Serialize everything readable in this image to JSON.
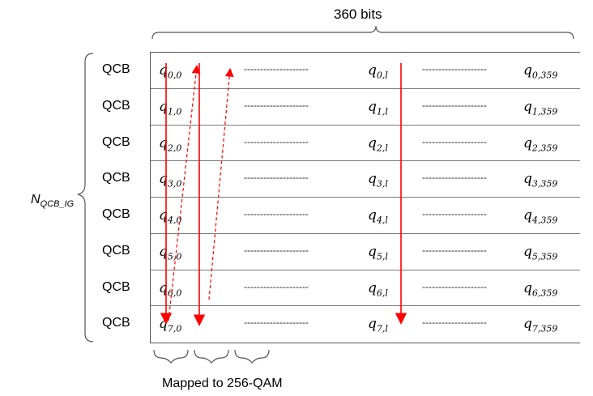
{
  "header": {
    "bits_label": "360 bits"
  },
  "side": {
    "group_label_main": "N",
    "group_label_sub": "QCB_IG"
  },
  "row_label": "QCB",
  "rows": [
    {
      "c0": "0,0",
      "cl": "0,l",
      "cn": "0,359"
    },
    {
      "c0": "1,0",
      "cl": "1,l",
      "cn": "1,359"
    },
    {
      "c0": "2,0",
      "cl": "2,l",
      "cn": "2,359"
    },
    {
      "c0": "3,0",
      "cl": "3,l",
      "cn": "3,359"
    },
    {
      "c0": "4,0",
      "cl": "4,l",
      "cn": "4,359"
    },
    {
      "c0": "5,0",
      "cl": "5,l",
      "cn": "5,359"
    },
    {
      "c0": "6,0",
      "cl": "6,l",
      "cn": "6,359"
    },
    {
      "c0": "7,0",
      "cl": "7,l",
      "cn": "7,359"
    }
  ],
  "cell_symbol": "q",
  "dashes": "--------------------",
  "footer": {
    "mapping_label": "Mapped to 256-QAM"
  },
  "colors": {
    "arrow": "#ff0000",
    "line": "#555555"
  }
}
